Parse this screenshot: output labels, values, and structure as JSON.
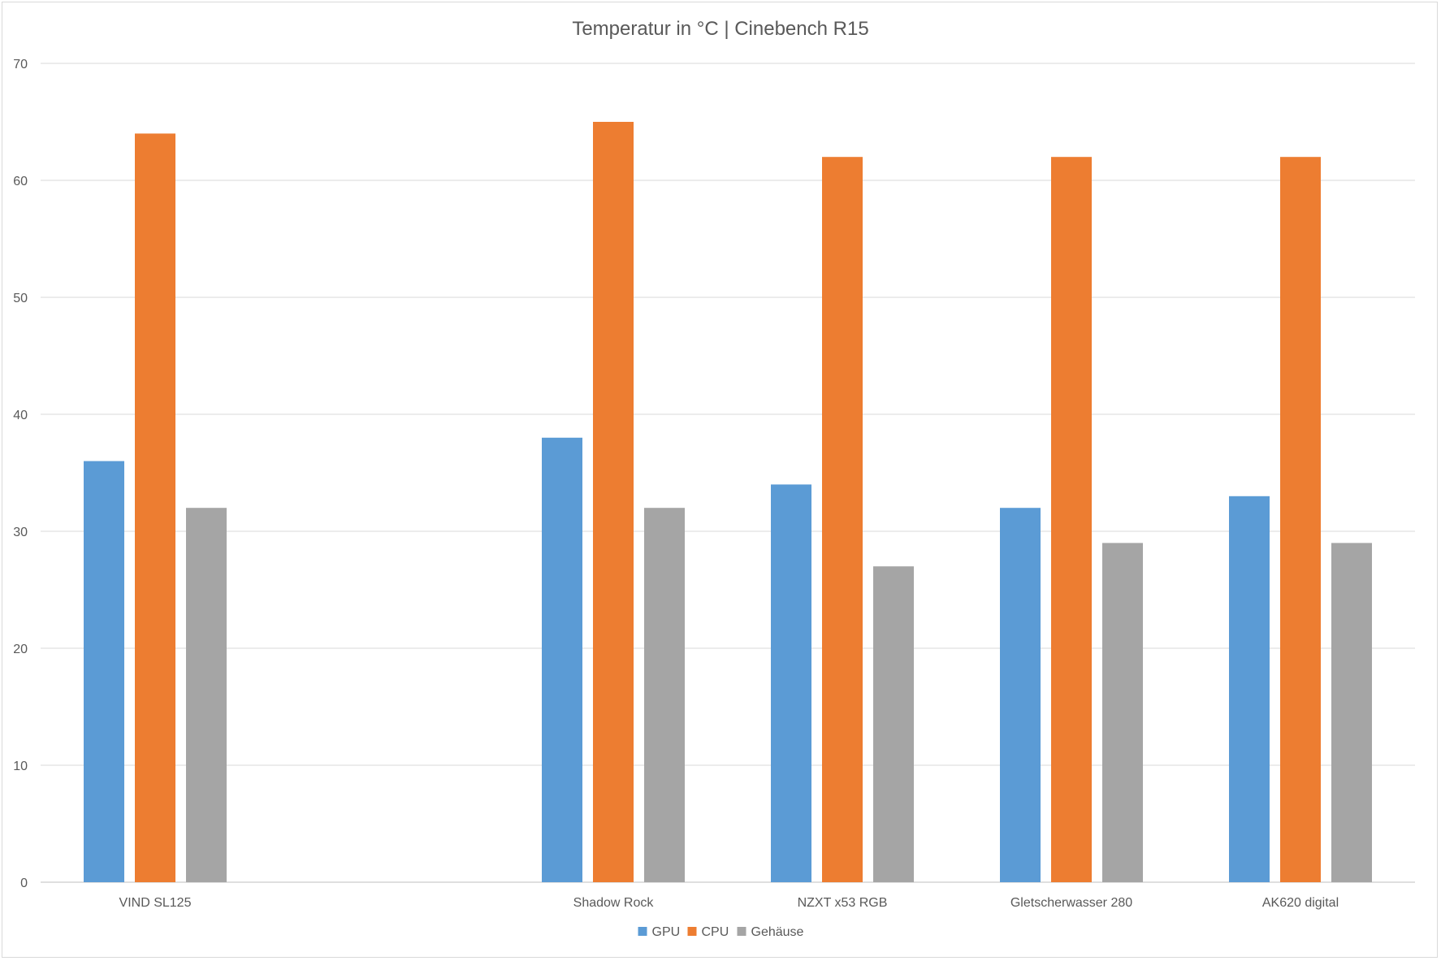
{
  "chart_data": {
    "type": "bar",
    "title": "Temperatur in °C | Cinebench R15",
    "xlabel": "",
    "ylabel": "",
    "categories": [
      "VIND SL125",
      "",
      "Shadow Rock",
      "NZXT x53 RGB",
      "Gletscherwasser 280",
      "AK620 digital"
    ],
    "series": [
      {
        "name": "GPU",
        "color": "#5b9bd5",
        "values": [
          36,
          null,
          38,
          34,
          32,
          33
        ]
      },
      {
        "name": "CPU",
        "color": "#ed7d31",
        "values": [
          64,
          null,
          65,
          62,
          62,
          62
        ]
      },
      {
        "name": "Gehäuse",
        "color": "#a5a5a5",
        "values": [
          32,
          null,
          32,
          27,
          29,
          29
        ]
      }
    ],
    "ylim": [
      0,
      70
    ],
    "yticks": [
      0,
      10,
      20,
      30,
      40,
      50,
      60,
      70
    ],
    "grid": true,
    "legend": "bottom-center"
  }
}
